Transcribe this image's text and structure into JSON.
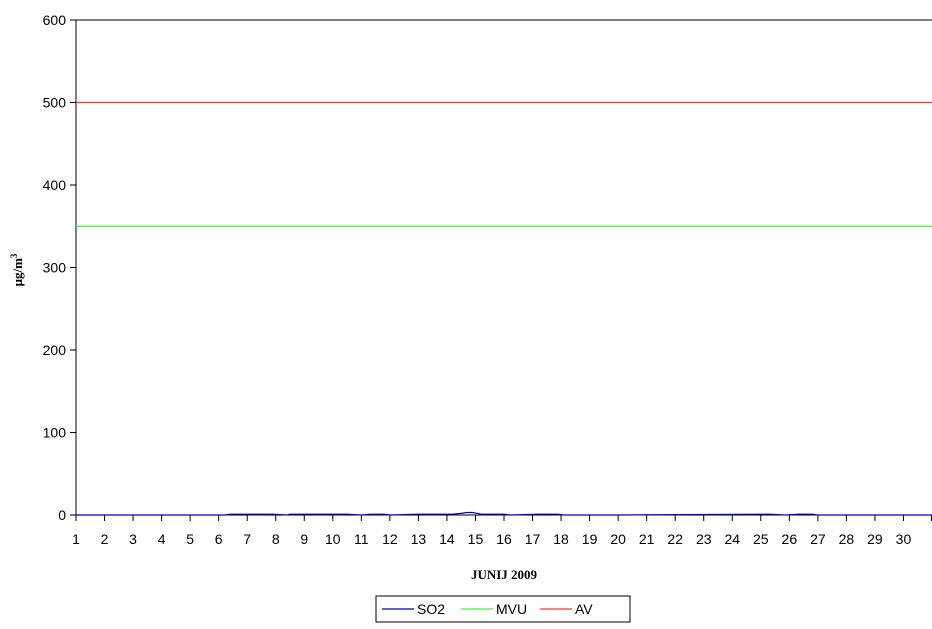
{
  "chart_data": {
    "type": "line",
    "title": "",
    "xlabel": "JUNIJ 2009",
    "ylabel": "μg/m",
    "ylabel_superscript": "3",
    "xlim": [
      1,
      31
    ],
    "ylim": [
      0,
      600
    ],
    "x_ticks": [
      "1",
      "2",
      "3",
      "4",
      "5",
      "6",
      "7",
      "8",
      "9",
      "10",
      "11",
      "12",
      "13",
      "14",
      "15",
      "16",
      "17",
      "18",
      "19",
      "20",
      "21",
      "22",
      "23",
      "24",
      "25",
      "26",
      "27",
      "28",
      "29",
      "30"
    ],
    "y_ticks": [
      0,
      100,
      200,
      300,
      400,
      500,
      600
    ],
    "grid": false,
    "legend_position": "bottom",
    "series": [
      {
        "name": "SO2",
        "color": "#0000cc",
        "x": [
          1,
          6.2,
          6.4,
          6.8,
          7.2,
          7.6,
          7.9,
          8.4,
          8.5,
          9.2,
          10.2,
          10.5,
          11.0,
          11.3,
          11.8,
          12.0,
          13.0,
          14.2,
          14.5,
          14.7,
          14.9,
          15.2,
          15.6,
          16.0,
          16.2,
          17.2,
          17.5,
          17.9,
          18.1,
          20.0,
          25.3,
          25.9,
          26.3,
          26.8,
          27.0,
          31
        ],
        "y": [
          0,
          0,
          1,
          1,
          1,
          1,
          1,
          0,
          1,
          1,
          1,
          1,
          0,
          1,
          1,
          0,
          1,
          1,
          2,
          3,
          3,
          1,
          1,
          1,
          0,
          1,
          1,
          1,
          0,
          0,
          1,
          0,
          1,
          1,
          0,
          0
        ]
      },
      {
        "name": "MVU",
        "color": "#33ff33",
        "x": [
          1,
          31
        ],
        "y": [
          350,
          350
        ]
      },
      {
        "name": "AV",
        "color": "#ff3333",
        "x": [
          1,
          31
        ],
        "y": [
          500,
          500
        ]
      }
    ]
  }
}
